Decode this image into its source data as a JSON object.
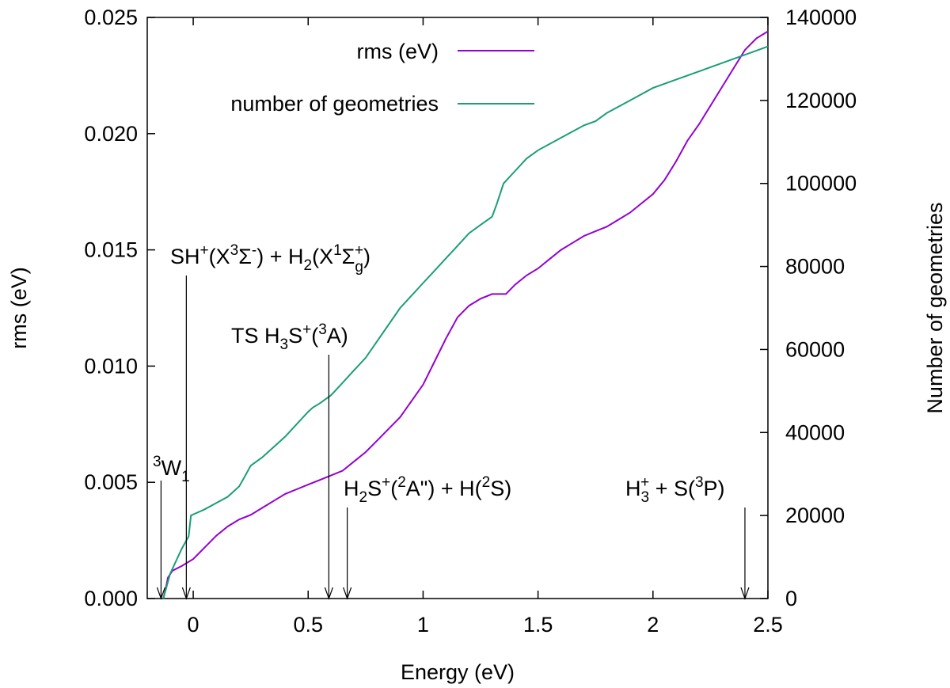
{
  "chart_data": {
    "type": "line",
    "xlabel": "Energy (eV)",
    "ylabel": "rms (eV)",
    "y2label": "Number of geometries",
    "xlim": [
      -0.2,
      2.5
    ],
    "ylim": [
      0.0,
      0.025
    ],
    "y2lim": [
      0,
      140000
    ],
    "grid": false,
    "legend_position": "top-right",
    "x_ticks": [
      {
        "value": 0,
        "label": "0"
      },
      {
        "value": 0.5,
        "label": "0.5"
      },
      {
        "value": 1,
        "label": "1"
      },
      {
        "value": 1.5,
        "label": "1.5"
      },
      {
        "value": 2,
        "label": "2"
      },
      {
        "value": 2.5,
        "label": "2.5"
      }
    ],
    "y_ticks": [
      {
        "value": 0.0,
        "label": "0.000"
      },
      {
        "value": 0.005,
        "label": "0.005"
      },
      {
        "value": 0.01,
        "label": "0.010"
      },
      {
        "value": 0.015,
        "label": "0.015"
      },
      {
        "value": 0.02,
        "label": "0.020"
      },
      {
        "value": 0.025,
        "label": "0.025"
      }
    ],
    "y2_ticks": [
      {
        "value": 0,
        "label": "0"
      },
      {
        "value": 20000,
        "label": "20000"
      },
      {
        "value": 40000,
        "label": "40000"
      },
      {
        "value": 60000,
        "label": "60000"
      },
      {
        "value": 80000,
        "label": "80000"
      },
      {
        "value": 100000,
        "label": "100000"
      },
      {
        "value": 120000,
        "label": "120000"
      },
      {
        "value": 140000,
        "label": "140000"
      }
    ],
    "series": [
      {
        "name": "rms (eV)",
        "axis": "left",
        "color": "#9400d3",
        "x": [
          -0.13,
          -0.12,
          -0.11,
          -0.09,
          -0.05,
          0.0,
          0.05,
          0.1,
          0.15,
          0.2,
          0.25,
          0.3,
          0.35,
          0.4,
          0.45,
          0.5,
          0.55,
          0.6,
          0.65,
          0.7,
          0.75,
          0.8,
          0.85,
          0.9,
          0.95,
          1.0,
          1.02,
          1.05,
          1.1,
          1.15,
          1.2,
          1.25,
          1.3,
          1.33,
          1.36,
          1.4,
          1.45,
          1.5,
          1.55,
          1.6,
          1.65,
          1.7,
          1.75,
          1.8,
          1.85,
          1.9,
          1.95,
          2.0,
          2.05,
          2.1,
          2.15,
          2.2,
          2.25,
          2.3,
          2.35,
          2.4,
          2.45,
          2.5
        ],
        "values": [
          0.0,
          0.0004,
          0.0009,
          0.0012,
          0.0014,
          0.0017,
          0.0022,
          0.0027,
          0.0031,
          0.0034,
          0.0036,
          0.0039,
          0.0042,
          0.0045,
          0.0047,
          0.0049,
          0.0051,
          0.0053,
          0.0055,
          0.0059,
          0.0063,
          0.0068,
          0.0073,
          0.0078,
          0.0085,
          0.0092,
          0.0096,
          0.0102,
          0.0112,
          0.0121,
          0.0126,
          0.0129,
          0.0131,
          0.0131,
          0.0131,
          0.0135,
          0.0139,
          0.0142,
          0.0146,
          0.015,
          0.0153,
          0.0156,
          0.0158,
          0.016,
          0.0163,
          0.0166,
          0.017,
          0.0174,
          0.018,
          0.0188,
          0.0197,
          0.0204,
          0.0212,
          0.022,
          0.0228,
          0.0236,
          0.0241,
          0.0244
        ]
      },
      {
        "name": "number of geometries",
        "axis": "right",
        "color": "#1b9e77",
        "x": [
          -0.13,
          -0.1,
          -0.05,
          -0.02,
          -0.01,
          0.05,
          0.1,
          0.15,
          0.2,
          0.22,
          0.25,
          0.3,
          0.35,
          0.4,
          0.45,
          0.5,
          0.52,
          0.55,
          0.6,
          0.65,
          0.7,
          0.75,
          0.8,
          0.85,
          0.9,
          0.95,
          1.0,
          1.05,
          1.1,
          1.15,
          1.2,
          1.25,
          1.3,
          1.32,
          1.35,
          1.4,
          1.45,
          1.5,
          1.6,
          1.7,
          1.75,
          1.8,
          1.9,
          2.0,
          2.1,
          2.2,
          2.3,
          2.4,
          2.5
        ],
        "values": [
          0,
          6000,
          12000,
          15000,
          20000,
          21500,
          23000,
          24500,
          27000,
          29000,
          32000,
          34000,
          36500,
          39000,
          42000,
          45000,
          46000,
          47000,
          49000,
          52000,
          55000,
          58000,
          62000,
          66000,
          70000,
          73000,
          76000,
          79000,
          82000,
          85000,
          88000,
          90000,
          92000,
          95000,
          100000,
          103000,
          106000,
          108000,
          111000,
          114000,
          115000,
          117000,
          120000,
          123000,
          125000,
          127000,
          129000,
          131000,
          133000
        ]
      }
    ],
    "annotations": [
      {
        "id": "w1",
        "x": -0.14,
        "base": "",
        "sup": "3",
        "mid": "W",
        "sub": "1",
        "tail": ""
      },
      {
        "id": "sh",
        "x": -0.03,
        "text_parts": [
          "SH",
          "+",
          "(X",
          "3",
          "Σ",
          "-",
          ") + H",
          "2",
          "(X",
          "1",
          "Σ",
          "g",
          "+",
          ")"
        ]
      },
      {
        "id": "ts",
        "x": 0.59,
        "text_parts": [
          "TS H",
          "3",
          "S",
          "+",
          "(",
          "3",
          "A)"
        ]
      },
      {
        "id": "h2s",
        "x": 0.67,
        "text_parts": [
          "H",
          "2",
          "S",
          "+",
          "(",
          "2",
          "A\") + H(",
          "2",
          "S)"
        ]
      },
      {
        "id": "h3",
        "x": 2.4,
        "text_parts": [
          "H",
          "3",
          "+",
          " + S(",
          "3",
          "P)"
        ]
      }
    ]
  }
}
